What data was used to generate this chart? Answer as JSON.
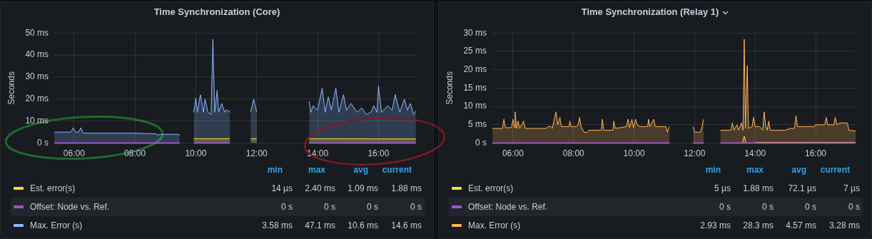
{
  "chart_data": [
    {
      "type": "line",
      "title": "Time Synchronization (Core)",
      "ylabel": "Seconds",
      "xlim": [
        5.35,
        17.28
      ],
      "ylim": [
        0,
        50
      ],
      "xticks": [
        {
          "value": 6,
          "label": "06:00"
        },
        {
          "value": 8,
          "label": "08:00"
        },
        {
          "value": 10,
          "label": "10:00"
        },
        {
          "value": 12,
          "label": "12:00"
        },
        {
          "value": 14,
          "label": "14:00"
        },
        {
          "value": 16,
          "label": "16:00"
        }
      ],
      "yticks": [
        {
          "value": 0,
          "label": "0 s"
        },
        {
          "value": 10,
          "label": "10 ms"
        },
        {
          "value": 20,
          "label": "20 ms"
        },
        {
          "value": 30,
          "label": "30 ms"
        },
        {
          "value": 40,
          "label": "40 ms"
        },
        {
          "value": 50,
          "label": "50 ms"
        }
      ],
      "grid": true,
      "legend": "bottom",
      "annotations": [
        "min",
        "max",
        "avg",
        "current",
        "14 µs",
        "2.40 ms",
        "1.09 ms",
        "1.88 ms",
        "0 s",
        "0 s",
        "0 s",
        "0 s",
        "3.58 ms",
        "47.1 ms",
        "10.6 ms",
        "14.6 ms"
      ],
      "series": [
        {
          "name": "Est. error(s)",
          "type": "area",
          "color": "#fade2a",
          "x": [
            9.93,
            11.12,
            11.5,
            11.8,
            12.0,
            12.5,
            13.72,
            17.23
          ],
          "values": [
            2,
            2,
            null,
            2,
            2,
            null,
            2,
            1.88
          ]
        },
        {
          "name": "Offset: Node vs. Ref.",
          "type": "line",
          "color": "#a352cc",
          "x": [
            5.35,
            9.47,
            9.7,
            9.93,
            11.12,
            11.5,
            13.72,
            17.23
          ],
          "values": [
            0,
            0,
            null,
            0,
            0,
            null,
            0,
            0
          ]
        },
        {
          "name": "Max. Error (s)",
          "type": "area",
          "color": "#8ab8ff",
          "x": [
            5.35,
            5.9,
            5.97,
            6.05,
            6.15,
            6.22,
            6.3,
            6.45,
            7.0,
            8.0,
            8.7,
            8.75,
            8.8,
            9.3,
            9.4,
            9.47,
            9.7,
            9.93,
            10.0,
            10.05,
            10.15,
            10.25,
            10.3,
            10.4,
            10.5,
            10.56,
            10.62,
            10.7,
            10.75,
            10.85,
            10.95,
            11.0,
            11.1,
            11.12,
            11.5,
            11.8,
            11.9,
            12.0,
            12.5,
            13.72,
            13.78,
            13.85,
            14.0,
            14.15,
            14.25,
            14.35,
            14.45,
            14.6,
            14.7,
            14.85,
            14.95,
            15.1,
            15.3,
            15.45,
            15.6,
            15.75,
            15.85,
            15.95,
            16.0,
            16.1,
            16.3,
            16.45,
            16.55,
            16.7,
            16.85,
            16.95,
            17.05,
            17.15,
            17.23
          ],
          "values": [
            5,
            5,
            7,
            5,
            5,
            7,
            4.6,
            4.5,
            4.5,
            4.5,
            4.2,
            3.58,
            4,
            4,
            4,
            3.6,
            null,
            14,
            20.5,
            14,
            22,
            14,
            20,
            14,
            13,
            47.1,
            14,
            24,
            14,
            18,
            14,
            15,
            14.5,
            14,
            null,
            14,
            20,
            14,
            null,
            19,
            14,
            17,
            15,
            25,
            14,
            21,
            15,
            25,
            14,
            22,
            15,
            18,
            14,
            16,
            13,
            14,
            17,
            14,
            26,
            14,
            17,
            15,
            22,
            14,
            20,
            15,
            18,
            13,
            14.6
          ]
        }
      ]
    },
    {
      "type": "line",
      "title": "Time Synchronization (Relay 1)",
      "ylabel": "Seconds",
      "xlim": [
        5.32,
        17.32
      ],
      "ylim": [
        0,
        30
      ],
      "xticks": [
        {
          "value": 6,
          "label": "06:00"
        },
        {
          "value": 8,
          "label": "08:00"
        },
        {
          "value": 10,
          "label": "10:00"
        },
        {
          "value": 12,
          "label": "12:00"
        },
        {
          "value": 14,
          "label": "14:00"
        },
        {
          "value": 16,
          "label": "16:00"
        }
      ],
      "yticks": [
        {
          "value": 0,
          "label": "0 s"
        },
        {
          "value": 5,
          "label": "5 ms"
        },
        {
          "value": 10,
          "label": "10 ms"
        },
        {
          "value": 15,
          "label": "15 ms"
        },
        {
          "value": 20,
          "label": "20 ms"
        },
        {
          "value": 25,
          "label": "25 ms"
        },
        {
          "value": 30,
          "label": "30 ms"
        }
      ],
      "grid": true,
      "legend": "bottom",
      "annotations": [
        "min",
        "max",
        "avg",
        "current",
        "5 µs",
        "1.88 ms",
        "72.1 µs",
        "7 µs",
        "0 s",
        "0 s",
        "0 s",
        "0 s",
        "2.93 ms",
        "28.3 ms",
        "4.57 ms",
        "3.28 ms"
      ],
      "series": [
        {
          "name": "Est. error(s)",
          "type": "area",
          "color": "#fade2a",
          "x": [
            13.58,
            13.64,
            13.7,
            13.8,
            14.0,
            17.32
          ],
          "values": [
            0.1,
            1.88,
            0.1,
            null,
            0.2,
            0.2
          ]
        },
        {
          "name": "Offset: Node vs. Ref.",
          "type": "line",
          "color": "#a352cc",
          "x": [
            5.32,
            11.17,
            11.5,
            11.95,
            12.3,
            12.6,
            12.85,
            17.32
          ],
          "values": [
            0,
            0,
            null,
            0,
            0,
            null,
            0,
            0
          ]
        },
        {
          "name": "Max. Error (s)",
          "type": "area",
          "color": "#ffb357",
          "x": [
            5.32,
            5.65,
            5.7,
            5.75,
            5.95,
            6.0,
            6.05,
            6.07,
            6.12,
            6.17,
            6.22,
            6.35,
            6.4,
            7.1,
            7.15,
            7.25,
            7.3,
            7.35,
            7.42,
            7.48,
            7.55,
            7.6,
            7.85,
            7.88,
            7.92,
            8.1,
            8.15,
            8.2,
            8.25,
            8.35,
            8.45,
            8.5,
            8.92,
            8.95,
            9.0,
            9.3,
            9.33,
            9.38,
            9.75,
            9.8,
            9.85,
            9.93,
            9.98,
            10.05,
            10.1,
            10.2,
            10.45,
            10.48,
            10.52,
            10.65,
            10.7,
            11.05,
            11.1,
            11.17,
            11.5,
            11.95,
            12.0,
            12.2,
            12.3,
            12.6,
            12.85,
            13.2,
            13.25,
            13.3,
            13.4,
            13.45,
            13.55,
            13.6,
            13.64,
            13.68,
            13.74,
            13.78,
            13.9,
            13.95,
            14.0,
            14.15,
            14.25,
            14.3,
            14.35,
            14.4,
            14.45,
            14.5,
            15.0,
            15.15,
            15.3,
            15.35,
            15.4,
            15.95,
            16.0,
            16.3,
            16.35,
            16.4,
            16.6,
            16.65,
            16.7,
            16.8,
            17.05,
            17.1,
            17.32
          ],
          "values": [
            4,
            4,
            6.5,
            4.2,
            4.2,
            6.5,
            4.2,
            8.5,
            4,
            6,
            4,
            6,
            4,
            4,
            4.5,
            4.5,
            4,
            6,
            8.5,
            5,
            7,
            4.5,
            4.5,
            6,
            4.5,
            4.5,
            5,
            7,
            4.5,
            2.93,
            2.93,
            3.5,
            3.5,
            6.5,
            3.5,
            3.5,
            6,
            4,
            4.5,
            6.5,
            4.2,
            6.5,
            4.2,
            6.5,
            5,
            4.5,
            4.5,
            6.5,
            4.5,
            6.5,
            4.5,
            4.5,
            3,
            4.5,
            null,
            4.5,
            3,
            3,
            6.5,
            null,
            3.5,
            3.5,
            5.5,
            3.5,
            5,
            3.5,
            5.5,
            3.5,
            28.3,
            4,
            21,
            4,
            4.5,
            7,
            4.5,
            4.5,
            3.5,
            8.5,
            4.5,
            3.5,
            6,
            3.5,
            3.5,
            4,
            4,
            7.5,
            4.5,
            4.5,
            5,
            5,
            7,
            5,
            5,
            7,
            5,
            5.5,
            5.5,
            3.5,
            3.28
          ]
        }
      ]
    }
  ]
}
